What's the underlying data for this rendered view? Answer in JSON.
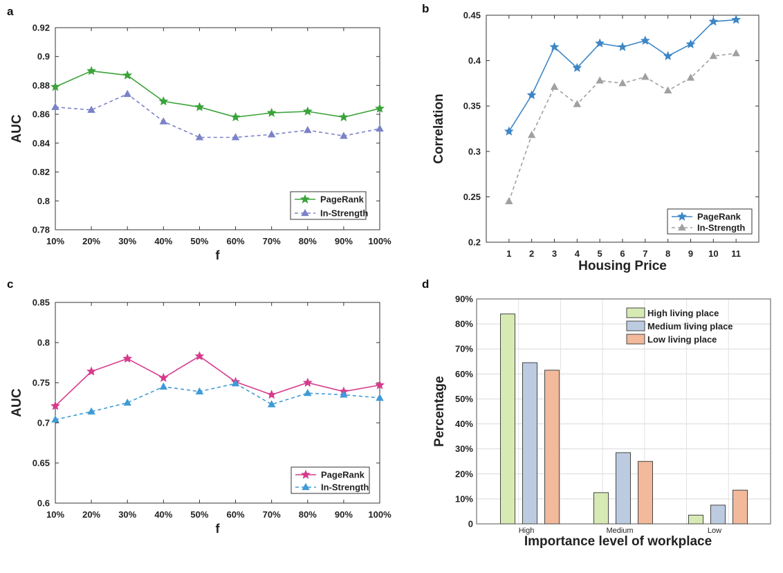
{
  "chart_data": [
    {
      "panel": "a",
      "type": "line",
      "categories": [
        "10%",
        "20%",
        "30%",
        "40%",
        "50%",
        "60%",
        "70%",
        "80%",
        "90%",
        "100%"
      ],
      "series": [
        {
          "name": "PageRank",
          "values": [
            0.879,
            0.89,
            0.887,
            0.869,
            0.865,
            0.858,
            0.861,
            0.862,
            0.858,
            0.864
          ],
          "color": "#3aa33a",
          "marker": "star",
          "dash": false
        },
        {
          "name": "In-Strength",
          "values": [
            0.865,
            0.863,
            0.874,
            0.855,
            0.844,
            0.844,
            0.846,
            0.849,
            0.845,
            0.85
          ],
          "color": "#7b82c8",
          "marker": "triangle",
          "dash": true
        }
      ],
      "xlabel": "f",
      "ylabel": "AUC",
      "ylim": [
        0.78,
        0.92
      ],
      "yticks": [
        "0.78",
        "0.8",
        "0.82",
        "0.84",
        "0.86",
        "0.88",
        "0.9",
        "0.92"
      ],
      "legend": "bottom-right"
    },
    {
      "panel": "b",
      "type": "line",
      "categories": [
        "1",
        "2",
        "3",
        "4",
        "5",
        "6",
        "7",
        "8",
        "9",
        "10",
        "11"
      ],
      "series": [
        {
          "name": "PageRank",
          "values": [
            0.322,
            0.362,
            0.415,
            0.392,
            0.419,
            0.415,
            0.422,
            0.405,
            0.418,
            0.443,
            0.445
          ],
          "color": "#3d86c6",
          "marker": "star",
          "dash": false
        },
        {
          "name": "In-Strength",
          "values": [
            0.245,
            0.318,
            0.371,
            0.352,
            0.378,
            0.375,
            0.382,
            0.367,
            0.381,
            0.405,
            0.408
          ],
          "color": "#a0a0a0",
          "marker": "triangle",
          "dash": true
        }
      ],
      "xlabel": "Housing Price",
      "ylabel": "Correlation",
      "ylim": [
        0.2,
        0.45
      ],
      "yticks": [
        "0.2",
        "0.25",
        "0.3",
        "0.35",
        "0.4",
        "0.45"
      ],
      "legend": "bottom-right"
    },
    {
      "panel": "c",
      "type": "line",
      "categories": [
        "10%",
        "20%",
        "30%",
        "40%",
        "50%",
        "60%",
        "70%",
        "80%",
        "90%",
        "100%"
      ],
      "series": [
        {
          "name": "PageRank",
          "values": [
            0.721,
            0.764,
            0.78,
            0.756,
            0.783,
            0.751,
            0.735,
            0.75,
            0.739,
            0.747
          ],
          "color": "#d63a8c",
          "marker": "star",
          "dash": false
        },
        {
          "name": "In-Strength",
          "values": [
            0.704,
            0.714,
            0.725,
            0.745,
            0.739,
            0.749,
            0.723,
            0.737,
            0.735,
            0.731
          ],
          "color": "#3f9ad6",
          "marker": "triangle",
          "dash": true
        }
      ],
      "xlabel": "f",
      "ylabel": "AUC",
      "ylim": [
        0.6,
        0.85
      ],
      "yticks": [
        "0.6",
        "0.65",
        "0.7",
        "0.75",
        "0.8",
        "0.85"
      ],
      "legend": "bottom-right"
    },
    {
      "panel": "d",
      "type": "bar",
      "categories": [
        "High",
        "Medium",
        "Low"
      ],
      "series": [
        {
          "name": "High living place",
          "values": [
            84,
            12.5,
            3.5
          ],
          "color": "#d7eab4"
        },
        {
          "name": "Medium living place",
          "values": [
            64.5,
            28.5,
            7.5
          ],
          "color": "#bccbe0"
        },
        {
          "name": "Low living place",
          "values": [
            61.5,
            25,
            13.5
          ],
          "color": "#f2b99b"
        }
      ],
      "xlabel": "Importance level of workplace",
      "ylabel": "Percentage",
      "ylim": [
        0,
        90
      ],
      "yticks": [
        "0",
        "10%",
        "20%",
        "30%",
        "40%",
        "50%",
        "60%",
        "70%",
        "80%",
        "90%"
      ],
      "legend": "top-right"
    }
  ]
}
